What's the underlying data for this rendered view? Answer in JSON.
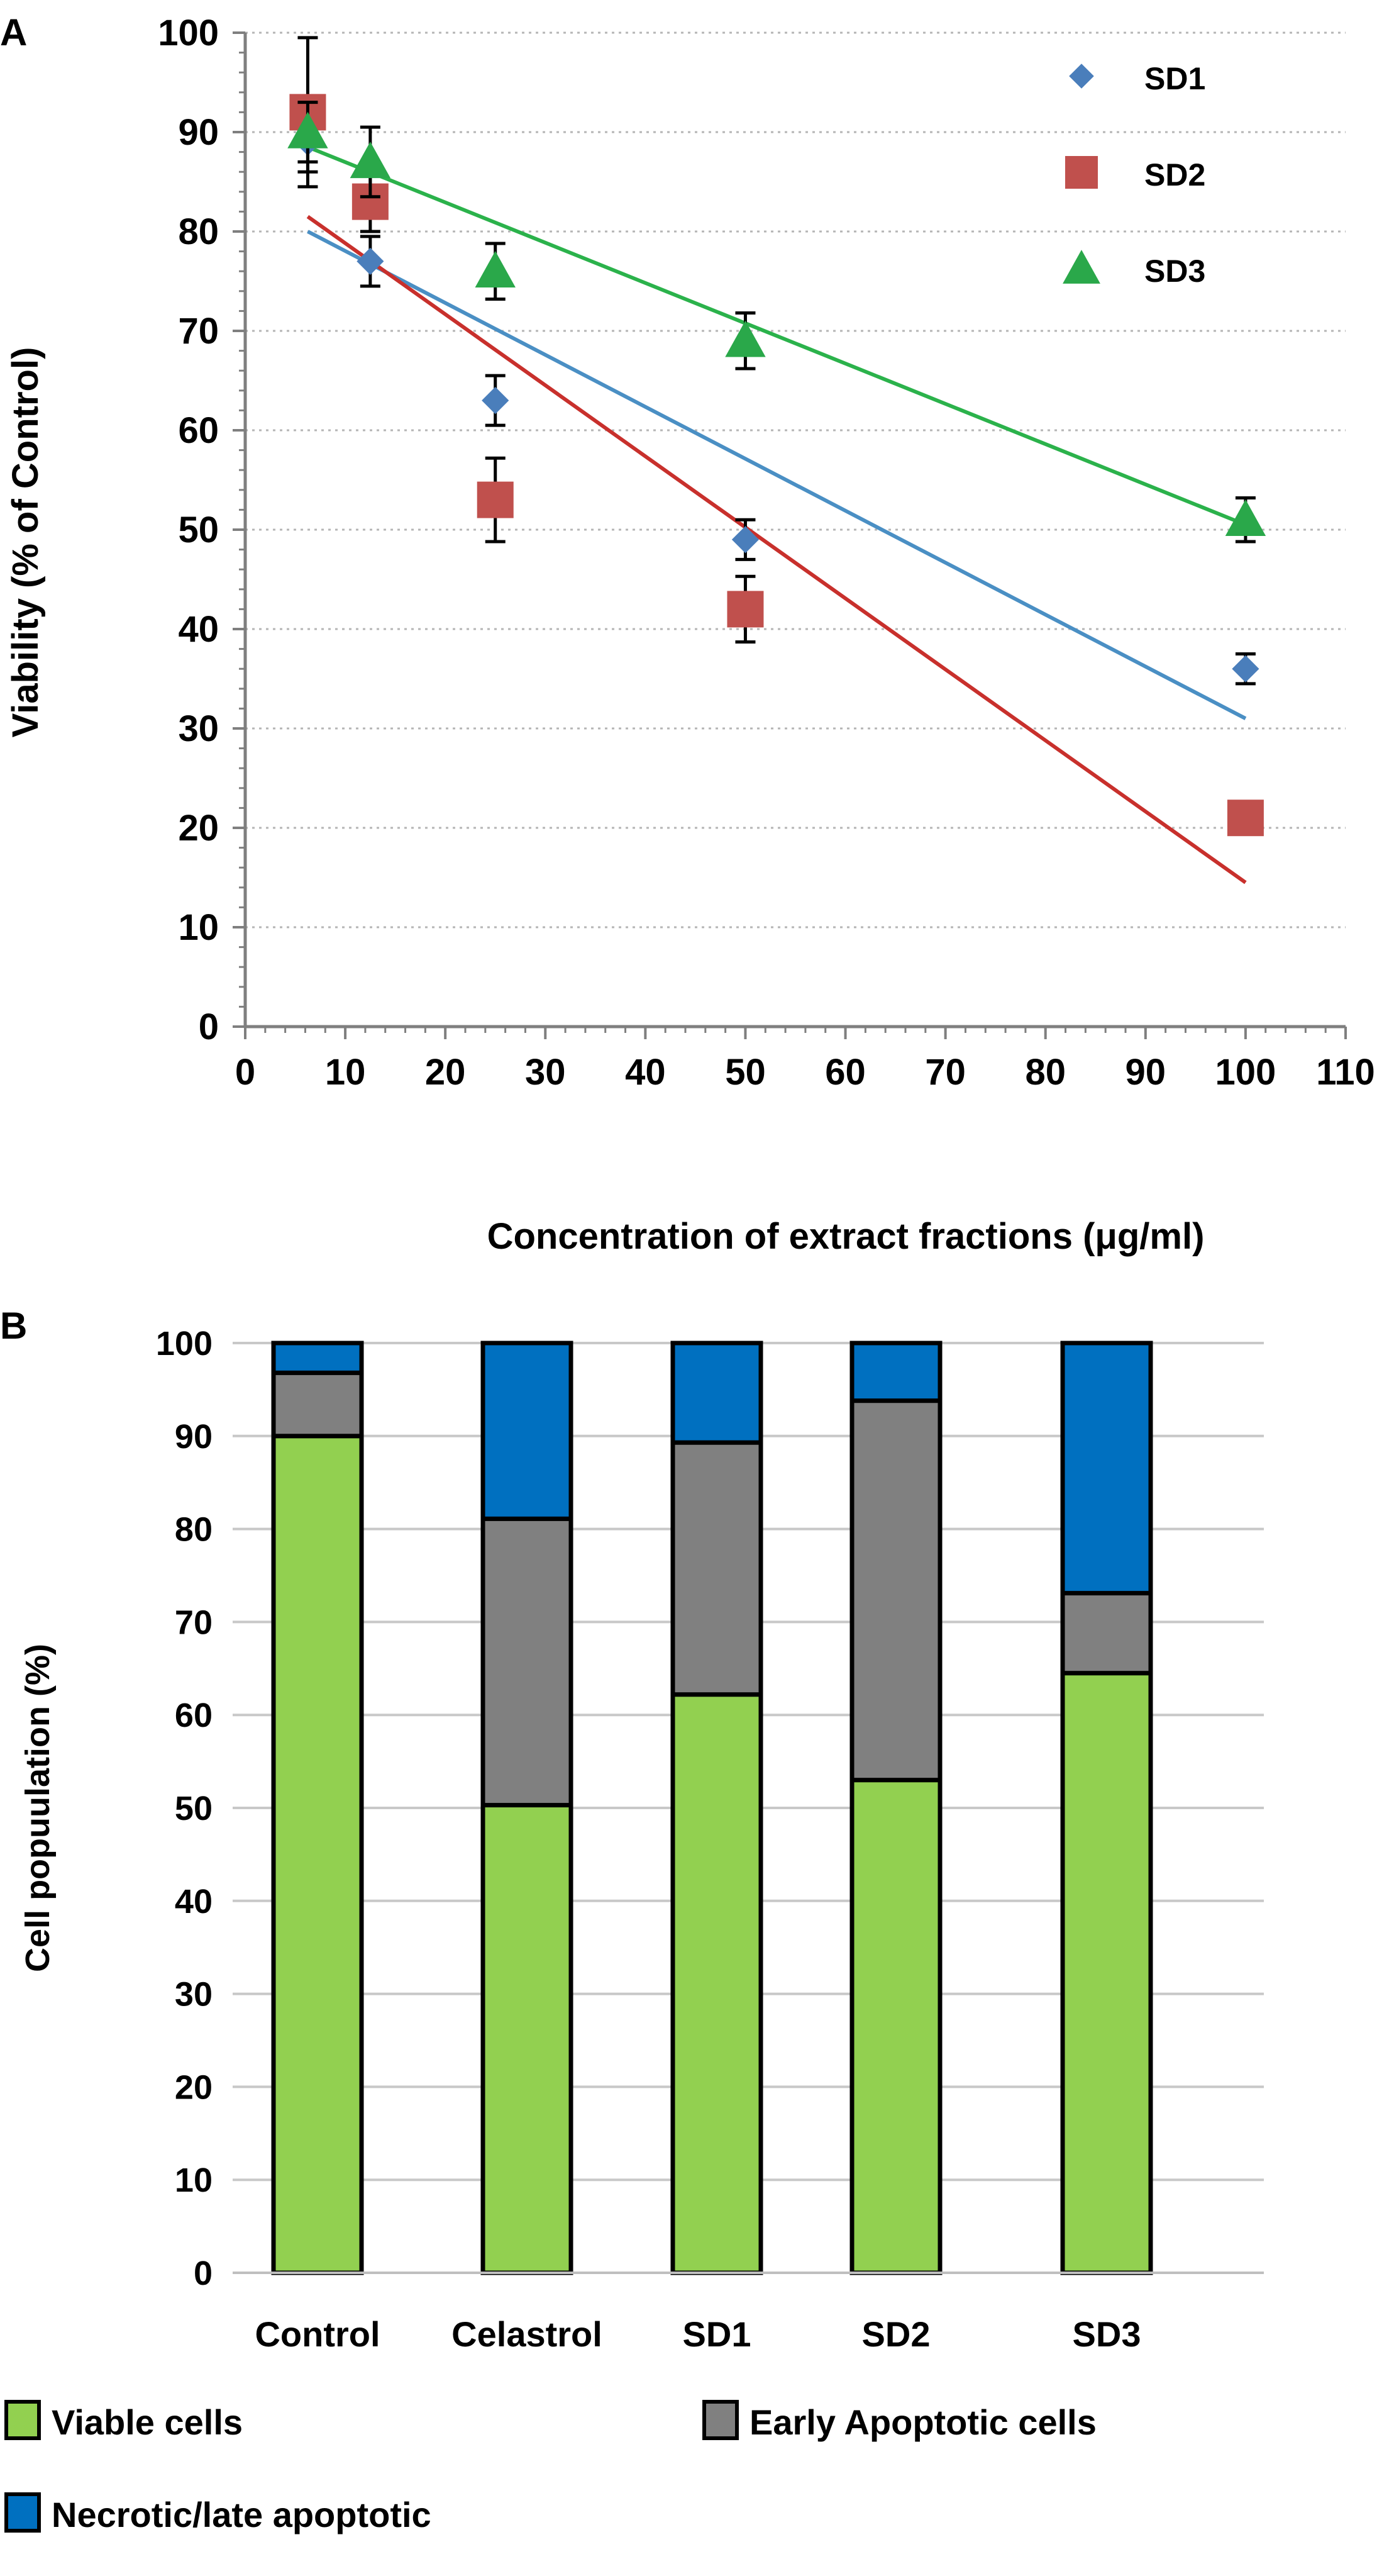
{
  "chart_data": [
    {
      "panel_label": "A",
      "type": "scatter",
      "title": "",
      "xlabel": "Concentration of extract fractions (μg/ml)",
      "ylabel": "Viability (% of Control)",
      "xlim": [
        0,
        110
      ],
      "ylim": [
        0,
        100
      ],
      "x_ticks": [
        "0",
        "10",
        "20",
        "30",
        "40",
        "50",
        "60",
        "70",
        "80",
        "90",
        "100",
        "110"
      ],
      "y_ticks": [
        "0",
        "10",
        "20",
        "30",
        "40",
        "50",
        "60",
        "70",
        "80",
        "90",
        "100"
      ],
      "legend_position": "top-right",
      "grid": "horizontal-dotted",
      "series": [
        {
          "name": "SD1",
          "marker": "diamond",
          "color": "#4a7ebb",
          "line_color": "#4a8fc4",
          "x": [
            6.25,
            12.5,
            25,
            50,
            100
          ],
          "y": [
            89,
            77,
            63,
            49,
            36
          ],
          "err": [
            3,
            2.5,
            2.5,
            2,
            1.5
          ],
          "trend": {
            "x": [
              6.25,
              100
            ],
            "y": [
              80,
              31
            ]
          }
        },
        {
          "name": "SD2",
          "marker": "square",
          "color": "#c0504d",
          "line_color": "#c8302c",
          "x": [
            6.25,
            12.5,
            25,
            50,
            100
          ],
          "y": [
            92,
            83,
            53,
            42,
            21
          ],
          "err": [
            7.5,
            3,
            4.2,
            3.3,
            1.5
          ],
          "trend": {
            "x": [
              6.25,
              100
            ],
            "y": [
              81.5,
              14.5
            ]
          }
        },
        {
          "name": "SD3",
          "marker": "triangle",
          "color": "#2aa84a",
          "line_color": "#2bb24b",
          "x": [
            6.25,
            12.5,
            25,
            50,
            100
          ],
          "y": [
            90,
            87,
            76,
            69,
            51
          ],
          "err": [
            3,
            3.5,
            2.8,
            2.8,
            2.2
          ],
          "trend": {
            "x": [
              6.25,
              100
            ],
            "y": [
              88.5,
              50.5
            ]
          }
        }
      ]
    },
    {
      "panel_label": "B",
      "type": "bar",
      "stacked": true,
      "title": "",
      "xlabel": "",
      "ylabel": "Cell popuulation (%)",
      "ylim": [
        0,
        100
      ],
      "y_ticks": [
        "0",
        "10",
        "20",
        "30",
        "40",
        "50",
        "60",
        "70",
        "80",
        "90",
        "100"
      ],
      "categories": [
        "Control",
        "Celastrol",
        "SD1",
        "SD2",
        "SD3"
      ],
      "legend_position": "bottom",
      "grid": "horizontal",
      "series": [
        {
          "name": "Viable cells",
          "color": "#92d050",
          "values": [
            90,
            50.3,
            62.2,
            53,
            64.5
          ]
        },
        {
          "name": "Early Apoptotic cells",
          "color": "#808080",
          "values": [
            6.8,
            30.8,
            27.1,
            40.8,
            8.6
          ]
        },
        {
          "name": "Necrotic/late apoptotic",
          "color": "#0070c0",
          "values": [
            3.2,
            18.9,
            10.7,
            6.2,
            26.9
          ]
        }
      ]
    }
  ]
}
